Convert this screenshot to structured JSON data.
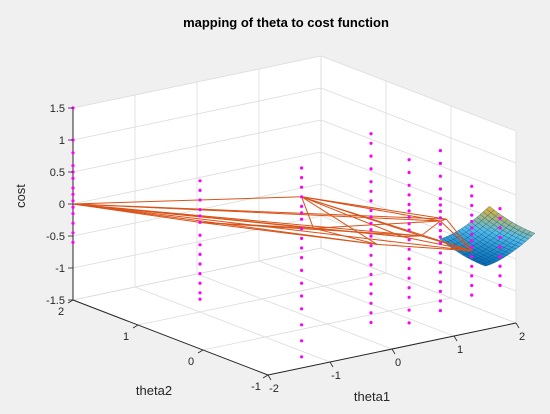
{
  "chart_data": {
    "type": "scatter",
    "subtype": "3d",
    "title": "mapping of theta to cost function",
    "xlabel": "theta1",
    "ylabel": "theta2",
    "zlabel": "cost",
    "xlim": [
      -2,
      2
    ],
    "ylim": [
      -1,
      2
    ],
    "zlim": [
      -1.5,
      1.5
    ],
    "xticks": [
      -2,
      -1,
      0,
      1,
      2
    ],
    "yticks": [
      -1,
      0,
      1,
      2
    ],
    "zticks": [
      -1.5,
      -1,
      -0.5,
      0,
      0.5,
      1,
      1.5
    ],
    "grid": true,
    "colors": {
      "scatter": "#ff00ff",
      "wireframe": "#d95319",
      "surface_low": "#0072bd",
      "surface_high": "#edb120",
      "background": "#f0f0f0"
    },
    "scatter_points": [
      [
        -2,
        2,
        1.5
      ],
      [
        -2,
        2,
        1.0
      ],
      [
        -2,
        2,
        0.8
      ],
      [
        -2,
        2,
        0.6
      ],
      [
        -2,
        2,
        0.5
      ],
      [
        -2,
        2,
        0.4
      ],
      [
        -2,
        2,
        0.25
      ],
      [
        -2,
        2,
        0.15
      ],
      [
        -2,
        2,
        0.05
      ],
      [
        -2,
        2,
        -0.05
      ],
      [
        -2,
        2,
        -0.15
      ],
      [
        -2,
        2,
        -0.3
      ],
      [
        -2,
        2,
        -0.45
      ],
      [
        -2,
        2,
        -0.6
      ],
      [
        -1,
        1,
        0.55
      ],
      [
        -1,
        1,
        0.4
      ],
      [
        -1,
        1,
        0.25
      ],
      [
        -1,
        1,
        0.1
      ],
      [
        -1,
        1,
        0.0
      ],
      [
        -1,
        1,
        -0.1
      ],
      [
        -1,
        1,
        -0.3
      ],
      [
        -1,
        1,
        -0.45
      ],
      [
        -1,
        1,
        -0.6
      ],
      [
        -1,
        1,
        -0.75
      ],
      [
        -1,
        1,
        -0.9
      ],
      [
        -1,
        1,
        -1.05
      ],
      [
        -1,
        1,
        -1.2
      ],
      [
        -1,
        1,
        -1.3
      ],
      [
        -0.2,
        0.2,
        0.9
      ],
      [
        -0.2,
        0.2,
        0.75
      ],
      [
        -0.2,
        0.2,
        0.6
      ],
      [
        -0.2,
        0.2,
        0.45
      ],
      [
        -0.2,
        0.2,
        0.3
      ],
      [
        -0.2,
        0.2,
        0.2
      ],
      [
        -0.2,
        0.2,
        0.1
      ],
      [
        -0.2,
        0.2,
        -0.05
      ],
      [
        -0.2,
        0.2,
        -0.2
      ],
      [
        -0.2,
        0.2,
        -0.35
      ],
      [
        -0.2,
        0.2,
        -0.5
      ],
      [
        -0.2,
        0.2,
        -0.7
      ],
      [
        -0.2,
        0.2,
        -0.9
      ],
      [
        -0.2,
        0.2,
        -1.1
      ],
      [
        -0.2,
        0.2,
        -1.3
      ],
      [
        -0.2,
        0.2,
        -1.55
      ],
      [
        -0.2,
        0.2,
        -1.8
      ],
      [
        -0.2,
        0.2,
        -2.05
      ],
      [
        0.5,
        -0.2,
        1.45
      ],
      [
        0.5,
        -0.2,
        1.3
      ],
      [
        0.5,
        -0.2,
        1.1
      ],
      [
        0.5,
        -0.2,
        0.9
      ],
      [
        0.5,
        -0.2,
        0.7
      ],
      [
        0.5,
        -0.2,
        0.55
      ],
      [
        0.5,
        -0.2,
        0.4
      ],
      [
        0.5,
        -0.2,
        0.25
      ],
      [
        0.5,
        -0.2,
        0.15
      ],
      [
        0.5,
        -0.2,
        0.05
      ],
      [
        0.5,
        -0.2,
        -0.05
      ],
      [
        0.5,
        -0.2,
        -0.15
      ],
      [
        0.5,
        -0.2,
        -0.3
      ],
      [
        0.5,
        -0.2,
        -0.45
      ],
      [
        0.5,
        -0.2,
        -0.6
      ],
      [
        0.5,
        -0.2,
        -0.75
      ],
      [
        0.5,
        -0.2,
        -0.9
      ],
      [
        0.5,
        -0.2,
        -1.05
      ],
      [
        0.5,
        -0.2,
        -1.2
      ],
      [
        0.5,
        -0.2,
        -1.35
      ],
      [
        0.5,
        -0.2,
        -1.5
      ],
      [
        0.8,
        -0.5,
        1.1
      ],
      [
        0.8,
        -0.5,
        0.9
      ],
      [
        0.8,
        -0.5,
        0.7
      ],
      [
        0.8,
        -0.5,
        0.55
      ],
      [
        0.8,
        -0.5,
        0.4
      ],
      [
        0.8,
        -0.5,
        0.3
      ],
      [
        0.8,
        -0.5,
        0.2
      ],
      [
        0.8,
        -0.5,
        0.1
      ],
      [
        0.8,
        -0.5,
        0.0
      ],
      [
        0.8,
        -0.5,
        -0.15
      ],
      [
        0.8,
        -0.5,
        -0.3
      ],
      [
        0.8,
        -0.5,
        -0.45
      ],
      [
        0.8,
        -0.5,
        -0.6
      ],
      [
        0.8,
        -0.5,
        -0.75
      ],
      [
        0.8,
        -0.5,
        -0.9
      ],
      [
        0.8,
        -0.5,
        -1.05
      ],
      [
        0.8,
        -0.5,
        -1.25
      ],
      [
        0.8,
        -0.5,
        -1.45
      ],
      [
        1.2,
        -0.6,
        1.2
      ],
      [
        1.2,
        -0.6,
        1.0
      ],
      [
        1.2,
        -0.6,
        0.8
      ],
      [
        1.2,
        -0.6,
        0.6
      ],
      [
        1.2,
        -0.6,
        0.45
      ],
      [
        1.2,
        -0.6,
        0.35
      ],
      [
        1.2,
        -0.6,
        0.25
      ],
      [
        1.2,
        -0.6,
        0.15
      ],
      [
        1.2,
        -0.6,
        0.05
      ],
      [
        1.2,
        -0.6,
        -0.05
      ],
      [
        1.2,
        -0.6,
        -0.15
      ],
      [
        1.2,
        -0.6,
        -0.25
      ],
      [
        1.2,
        -0.6,
        -0.4
      ],
      [
        1.2,
        -0.6,
        -0.55
      ],
      [
        1.2,
        -0.6,
        -0.7
      ],
      [
        1.2,
        -0.6,
        -0.85
      ],
      [
        1.2,
        -0.6,
        -1.0
      ],
      [
        1.2,
        -0.6,
        -1.15
      ],
      [
        1.2,
        -0.6,
        -1.3
      ],
      [
        1.6,
        -0.7,
        0.6
      ],
      [
        1.6,
        -0.7,
        0.45
      ],
      [
        1.6,
        -0.7,
        0.3
      ],
      [
        1.6,
        -0.7,
        0.15
      ],
      [
        1.6,
        -0.7,
        0.05
      ],
      [
        1.6,
        -0.7,
        -0.05
      ],
      [
        1.6,
        -0.7,
        -0.15
      ],
      [
        1.6,
        -0.7,
        -0.25
      ],
      [
        1.6,
        -0.7,
        -0.35
      ],
      [
        1.6,
        -0.7,
        -0.5
      ],
      [
        1.6,
        -0.7,
        -0.65
      ],
      [
        1.6,
        -0.7,
        -0.8
      ],
      [
        1.6,
        -0.7,
        -0.95
      ],
      [
        1.6,
        -0.7,
        -1.1
      ],
      [
        1.9,
        -0.85,
        0.25
      ],
      [
        1.9,
        -0.85,
        0.1
      ],
      [
        1.9,
        -0.85,
        -0.05
      ],
      [
        1.9,
        -0.85,
        -0.2
      ],
      [
        1.9,
        -0.85,
        -0.35
      ],
      [
        1.9,
        -0.85,
        -0.5
      ],
      [
        1.9,
        -0.85,
        -0.65
      ],
      [
        1.9,
        -0.85,
        -0.8
      ],
      [
        1.9,
        -0.85,
        -0.95
      ]
    ],
    "wireframe_nodes": [
      [
        -2,
        2,
        0
      ],
      [
        -0.2,
        0.2,
        0.45
      ],
      [
        1.2,
        -0.6,
        0.1
      ],
      [
        1.2,
        -0.3,
        -0.25
      ],
      [
        1.5,
        -0.8,
        -0.35
      ],
      [
        0.2,
        0.4,
        -0.2
      ],
      [
        0.9,
        -0.3,
        -0.2
      ],
      [
        -1,
        1,
        -0.1
      ],
      [
        0.6,
        -0.2,
        -0.3
      ],
      [
        1.4,
        -0.5,
        0.05
      ]
    ],
    "wireframe_edges": [
      [
        0,
        1
      ],
      [
        0,
        2
      ],
      [
        0,
        3
      ],
      [
        0,
        4
      ],
      [
        0,
        5
      ],
      [
        0,
        6
      ],
      [
        0,
        7
      ],
      [
        0,
        8
      ],
      [
        0,
        9
      ],
      [
        1,
        2
      ],
      [
        1,
        3
      ],
      [
        1,
        4
      ],
      [
        1,
        5
      ],
      [
        1,
        6
      ],
      [
        1,
        8
      ],
      [
        1,
        9
      ],
      [
        2,
        3
      ],
      [
        2,
        4
      ],
      [
        2,
        9
      ],
      [
        3,
        4
      ],
      [
        3,
        6
      ],
      [
        5,
        6
      ],
      [
        5,
        8
      ],
      [
        6,
        4
      ],
      [
        7,
        5
      ],
      [
        7,
        8
      ],
      [
        8,
        4
      ],
      [
        9,
        4
      ],
      [
        5,
        2
      ],
      [
        7,
        3
      ]
    ],
    "surface": {
      "theta1_range": [
        1.4,
        2.2
      ],
      "theta2_range": [
        -1.1,
        -0.4
      ],
      "cost_range": [
        -0.45,
        0.05
      ]
    }
  }
}
